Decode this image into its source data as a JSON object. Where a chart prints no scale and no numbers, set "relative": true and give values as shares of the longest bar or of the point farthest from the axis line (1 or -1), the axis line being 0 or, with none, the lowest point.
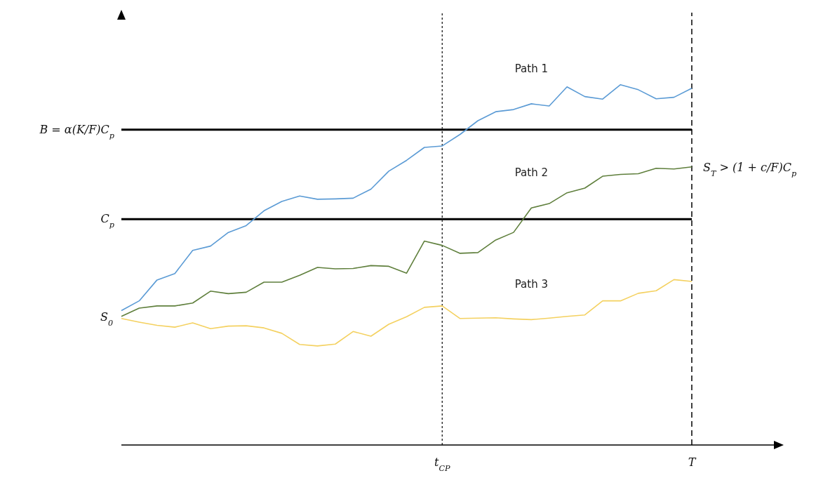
{
  "chart_data": {
    "type": "line",
    "relative": true,
    "categories": [
      null,
      null,
      null,
      null,
      null,
      null,
      null,
      null,
      null,
      null,
      null,
      null,
      null,
      null,
      null,
      null,
      null,
      null,
      "t$_{CP}$",
      null,
      null,
      null,
      null,
      null,
      null,
      null,
      null,
      null,
      null,
      null,
      null,
      null,
      "T",
      null,
      null,
      null,
      null,
      null
    ],
    "series": [
      {
        "name": "Path 1",
        "color": "#5b9bd5",
        "values": [
          0.373,
          0.4,
          0.458,
          0.476,
          0.54,
          0.552,
          0.59,
          0.609,
          0.65,
          0.676,
          0.691,
          0.682,
          0.683,
          0.685,
          0.71,
          0.76,
          0.79,
          0.826,
          0.83,
          0.862,
          0.9,
          0.925,
          0.931,
          0.947,
          0.941,
          0.994,
          0.967,
          0.96,
          1,
          0.986,
          0.961,
          0.965,
          0.99,
          null,
          null,
          null,
          null,
          null
        ]
      },
      {
        "name": "Path 2",
        "color": "#5f7f3c",
        "values": [
          0.357,
          0.38,
          0.386,
          0.386,
          0.394,
          0.427,
          0.42,
          0.424,
          0.452,
          0.452,
          0.471,
          0.493,
          0.489,
          0.49,
          0.498,
          0.496,
          0.477,
          0.566,
          0.554,
          0.532,
          0.534,
          0.569,
          0.59,
          0.658,
          0.67,
          0.7,
          0.713,
          0.746,
          0.751,
          0.753,
          0.768,
          0.766,
          0.772,
          null,
          null,
          null,
          null,
          null
        ]
      },
      {
        "name": "Path 3",
        "color": "#f4d160",
        "values": [
          0.351,
          0.341,
          0.332,
          0.327,
          0.339,
          0.323,
          0.33,
          0.331,
          0.325,
          0.31,
          0.279,
          0.275,
          0.28,
          0.315,
          0.302,
          0.335,
          0.356,
          0.382,
          0.386,
          0.351,
          0.352,
          0.353,
          0.35,
          0.348,
          0.352,
          0.357,
          0.361,
          0.4,
          0.4,
          0.421,
          0.428,
          0.459,
          0.454,
          null,
          null,
          null,
          null,
          null
        ]
      }
    ],
    "ref_lines": [
      {
        "axis": "y",
        "value": 0.875,
        "label": "B = α(K/F)C$_{p}$",
        "color": "#000000",
        "line_style": "solid"
      },
      {
        "axis": "y",
        "value": 0.627,
        "label": "C$_{p}$",
        "color": "#000000",
        "line_style": "solid"
      },
      {
        "axis": "x",
        "value": "t$_{CP}$",
        "color": "#333333",
        "line_style": "dotted"
      },
      {
        "axis": "x",
        "value": "T",
        "color": "#000000",
        "line_style": "dashed"
      }
    ],
    "annotations": [
      "S$_{0}$",
      {
        "text": "S$_{T}$ > (1 + c/F)C$_{p}$",
        "x": "T",
        "y": 0.772
      }
    ]
  }
}
